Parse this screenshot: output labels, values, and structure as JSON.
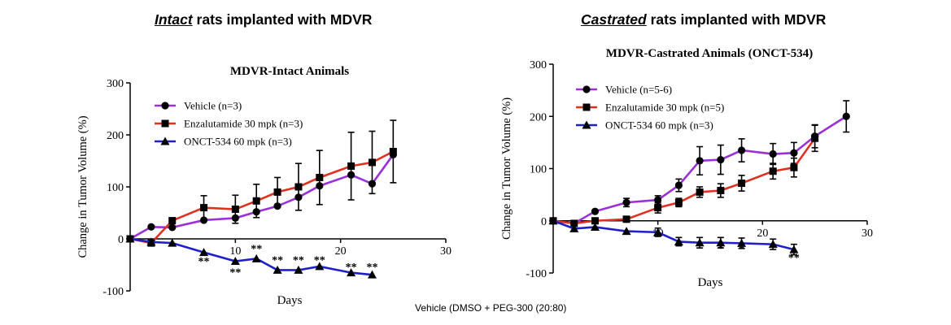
{
  "headings": [
    {
      "emphasis": "Intact",
      "rest": " rats implanted with MDVR"
    },
    {
      "emphasis": "Castrated",
      "rest": " rats implanted with MDVR"
    }
  ],
  "footnote": "Vehicle (DMSO + PEG-300 (20:80)",
  "colors": {
    "vehicle": "#9b30d9",
    "enzalutamide": "#e03020",
    "onct": "#2020c8",
    "marker": "#000000"
  },
  "chart_data": [
    {
      "type": "line",
      "title": "MDVR-Intact Animals",
      "xlabel": "Days",
      "ylabel": "Change in Tumor Volume (%)",
      "xlim": [
        0,
        30
      ],
      "ylim": [
        -100,
        300
      ],
      "xticks": [
        10,
        20,
        30
      ],
      "yticks": [
        -100,
        0,
        100,
        200,
        300
      ],
      "legend_position": "top-left",
      "series": [
        {
          "name": "Vehicle (n=3)",
          "color_key": "vehicle",
          "marker": "circle",
          "x": [
            0,
            2,
            4,
            7,
            10,
            12,
            14,
            16,
            18,
            21,
            23,
            25
          ],
          "y": [
            0,
            23,
            22,
            36,
            40,
            52,
            63,
            80,
            102,
            123,
            106,
            162
          ],
          "err": [
            0,
            0,
            0,
            0,
            0,
            0,
            0,
            0,
            0,
            0,
            0,
            0
          ]
        },
        {
          "name": "Enzalutamide 30 mpk (n=3)",
          "color_key": "enzalutamide",
          "marker": "square",
          "x": [
            0,
            2,
            4,
            7,
            10,
            12,
            14,
            16,
            18,
            21,
            23,
            25
          ],
          "y": [
            0,
            -8,
            35,
            60,
            57,
            73,
            90,
            100,
            118,
            140,
            147,
            168
          ],
          "err": [
            0,
            0,
            0,
            23,
            27,
            32,
            28,
            45,
            52,
            65,
            60,
            60
          ]
        },
        {
          "name": "ONCT-534 60 mpk (n=3)",
          "color_key": "onct",
          "marker": "triangle",
          "x": [
            0,
            2,
            4,
            7,
            10,
            12,
            14,
            16,
            18,
            21,
            23
          ],
          "y": [
            0,
            -6,
            -8,
            -26,
            -43,
            -38,
            -60,
            -60,
            -53,
            -65,
            -69
          ],
          "err": [
            0,
            0,
            0,
            0,
            0,
            0,
            0,
            0,
            0,
            0,
            0
          ]
        }
      ],
      "annotations": [
        {
          "x": 7,
          "y": -42,
          "text": "**"
        },
        {
          "x": 10,
          "y": -63,
          "text": "**"
        },
        {
          "x": 12,
          "y": -18,
          "text": "**"
        },
        {
          "x": 14,
          "y": -40,
          "text": "**"
        },
        {
          "x": 16,
          "y": -40,
          "text": "**"
        },
        {
          "x": 18,
          "y": -40,
          "text": "**"
        },
        {
          "x": 21,
          "y": -53,
          "text": "**"
        },
        {
          "x": 23,
          "y": -53,
          "text": "**"
        }
      ]
    },
    {
      "type": "line",
      "title": "MDVR-Castrated Animals (ONCT-534)",
      "xlabel": "Days",
      "ylabel": "Change in Tumor Volume (%)",
      "xlim": [
        0,
        30
      ],
      "ylim": [
        -100,
        300
      ],
      "xticks": [
        10,
        20,
        30
      ],
      "yticks": [
        -100,
        0,
        100,
        200,
        300
      ],
      "legend_position": "top-left",
      "series": [
        {
          "name": "Vehicle (n=5-6)",
          "color_key": "vehicle",
          "marker": "circle",
          "x": [
            0,
            2,
            4,
            7,
            10,
            12,
            14,
            16,
            18,
            21,
            23,
            25,
            28
          ],
          "y": [
            0,
            -5,
            18,
            35,
            40,
            68,
            115,
            117,
            135,
            128,
            130,
            162,
            200
          ],
          "err": [
            0,
            0,
            0,
            8,
            8,
            12,
            27,
            28,
            22,
            20,
            20,
            22,
            30
          ]
        },
        {
          "name": "Enzalutamide 30 mpk (n=5)",
          "color_key": "enzalutamide",
          "marker": "square",
          "x": [
            0,
            2,
            4,
            7,
            10,
            12,
            14,
            16,
            18,
            21,
            23,
            25
          ],
          "y": [
            0,
            -5,
            0,
            3,
            25,
            35,
            55,
            58,
            72,
            95,
            102,
            158
          ],
          "err": [
            0,
            0,
            0,
            0,
            10,
            8,
            10,
            13,
            15,
            15,
            18,
            25
          ]
        },
        {
          "name": "ONCT-534 60 mpk (n=3)",
          "color_key": "onct",
          "marker": "triangle",
          "x": [
            0,
            2,
            4,
            7,
            10,
            12,
            14,
            16,
            18,
            21,
            23
          ],
          "y": [
            0,
            -15,
            -12,
            -20,
            -22,
            -40,
            -42,
            -42,
            -43,
            -45,
            -55
          ],
          "err": [
            0,
            0,
            0,
            0,
            8,
            8,
            10,
            10,
            10,
            10,
            10
          ]
        }
      ],
      "annotations": [
        {
          "x": 16,
          "y": -52,
          "text": "*"
        },
        {
          "x": 18,
          "y": -52,
          "text": "*"
        },
        {
          "x": 23,
          "y": -70,
          "text": "**"
        }
      ]
    }
  ]
}
